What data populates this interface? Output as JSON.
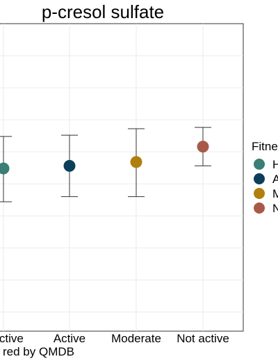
{
  "chart_data": {
    "type": "scatter",
    "title": "p-cresol sulfate",
    "xlabel": "red by QMDB",
    "ylabel": "",
    "categories": [
      "y active",
      "Active",
      "Moderate",
      "Not active"
    ],
    "grid": true,
    "legend": {
      "title": "Fitne",
      "placement": "right",
      "labels": [
        "H",
        "A",
        "M",
        "N"
      ]
    },
    "points": [
      {
        "category": "y active",
        "y": 0.37,
        "ymin": 0.11,
        "ymax": 0.62,
        "color": "#3a7e76"
      },
      {
        "category": "Active",
        "y": 0.39,
        "ymin": 0.15,
        "ymax": 0.63,
        "color": "#0b3f5a"
      },
      {
        "category": "Moderate",
        "y": 0.42,
        "ymin": 0.15,
        "ymax": 0.68,
        "color": "#b07f0d"
      },
      {
        "category": "Not active",
        "y": 0.54,
        "ymin": 0.39,
        "ymax": 0.69,
        "color": "#a85a4a"
      }
    ],
    "ylim": [
      -0.9,
      1.5
    ]
  }
}
